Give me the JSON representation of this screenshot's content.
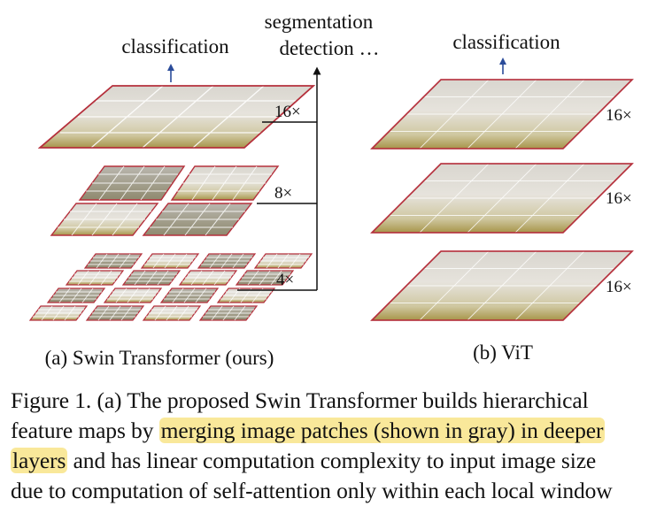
{
  "figure": {
    "left_panel": {
      "task_top": "classification",
      "task_right_line1": "segmentation",
      "task_right_line2": "detection …",
      "scales": [
        "16×",
        "8×",
        "4×"
      ],
      "caption": "(a) Swin Transformer (ours)"
    },
    "right_panel": {
      "task_top": "classification",
      "scales": [
        "16×",
        "16×",
        "16×"
      ],
      "caption": "(b) ViT"
    },
    "colors": {
      "patch_border": "#b5303c",
      "arrow_blue": "#2b4c9a",
      "highlight": "#f9e89a"
    }
  },
  "caption": {
    "line1": "Figure 1. (a) The proposed Swin Transformer builds hierarchical",
    "line2_pre": "feature maps by ",
    "line2_hl": "merging image patches (shown in gray) in deeper",
    "line3_hl": "layers",
    "line3_post": " and has linear computation complexity to input image size",
    "line4": "due to computation of self-attention only within each local window"
  }
}
